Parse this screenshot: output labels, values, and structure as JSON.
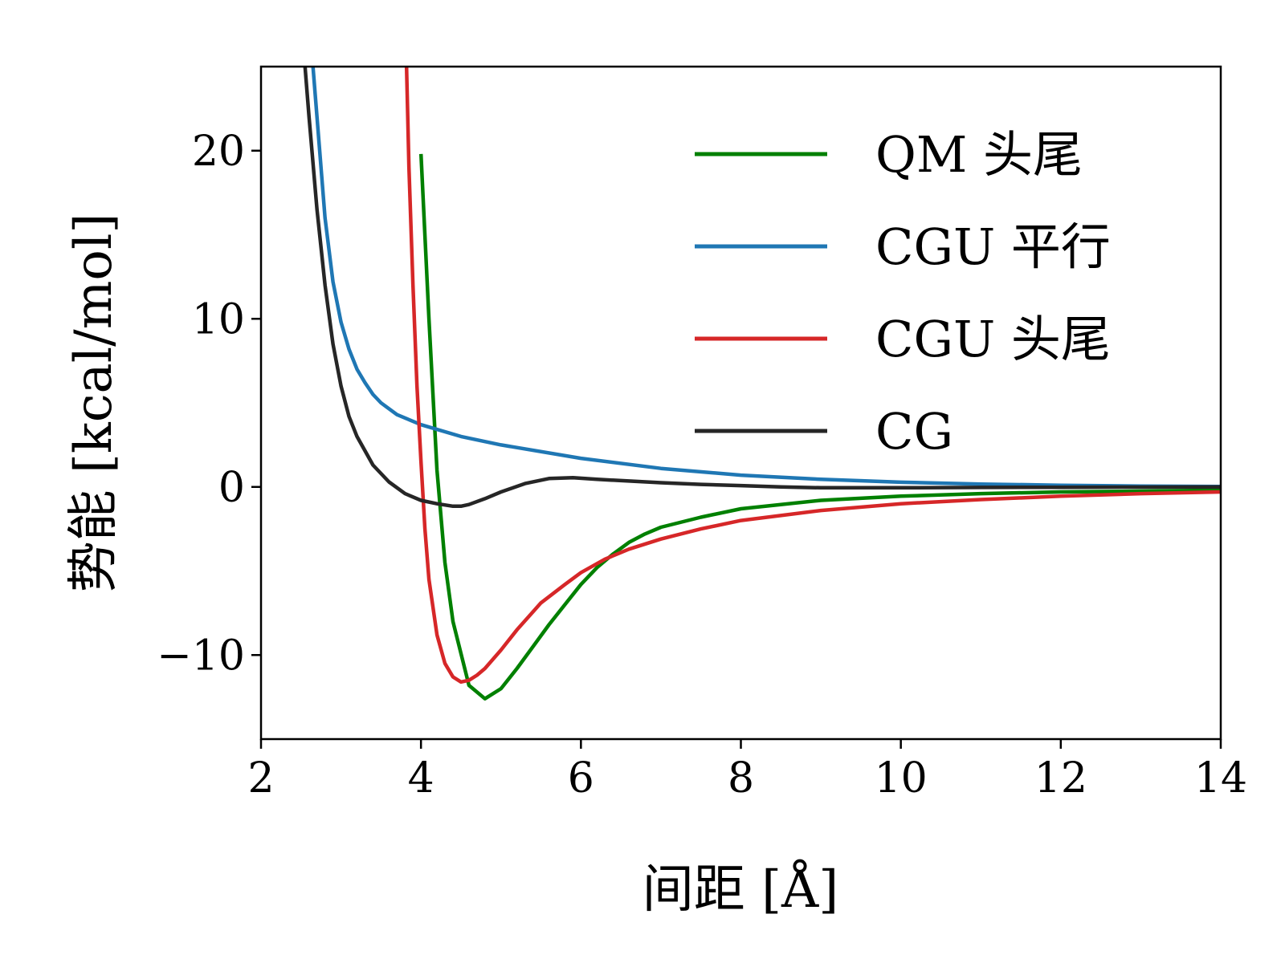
{
  "chart_data": {
    "type": "line",
    "xlabel": "间距 [Å]",
    "ylabel": "势能 [kcal/mol]",
    "xlim": [
      2,
      14
    ],
    "ylim": [
      -15,
      25
    ],
    "xticks": [
      2,
      4,
      6,
      8,
      10,
      12,
      14
    ],
    "yticks": [
      -10,
      0,
      10,
      20
    ],
    "xtick_labels": [
      "2",
      "4",
      "6",
      "8",
      "10",
      "12",
      "14"
    ],
    "ytick_labels": [
      "−10",
      "0",
      "10",
      "20"
    ],
    "grid": false,
    "legend_position": "top-right",
    "series": [
      {
        "name": "QM 头尾",
        "color": "#008000",
        "x": [
          4.0,
          4.1,
          4.2,
          4.3,
          4.4,
          4.6,
          4.8,
          5.0,
          5.2,
          5.4,
          5.6,
          5.8,
          6.0,
          6.2,
          6.4,
          6.6,
          6.8,
          7.0,
          7.5,
          8.0,
          9.0,
          10.0,
          11.0,
          12.0,
          13.0,
          14.0
        ],
        "y": [
          19.8,
          10.0,
          1.0,
          -4.5,
          -8.0,
          -11.8,
          -12.6,
          -12.0,
          -10.8,
          -9.5,
          -8.2,
          -7.0,
          -5.8,
          -4.8,
          -4.0,
          -3.3,
          -2.8,
          -2.4,
          -1.8,
          -1.3,
          -0.8,
          -0.55,
          -0.4,
          -0.3,
          -0.25,
          -0.2
        ]
      },
      {
        "name": "CGU 平行",
        "color": "#1f77b4",
        "x": [
          2.65,
          2.7,
          2.8,
          2.9,
          3.0,
          3.1,
          3.2,
          3.3,
          3.4,
          3.5,
          3.7,
          4.0,
          4.5,
          5.0,
          6.0,
          7.0,
          8.0,
          9.0,
          10.0,
          11.0,
          12.0,
          13.0,
          14.0
        ],
        "y": [
          25.0,
          22.0,
          16.0,
          12.2,
          9.8,
          8.2,
          7.0,
          6.2,
          5.5,
          5.0,
          4.3,
          3.7,
          3.0,
          2.5,
          1.7,
          1.1,
          0.7,
          0.45,
          0.28,
          0.17,
          0.1,
          0.05,
          0.02
        ]
      },
      {
        "name": "CGU 头尾",
        "color": "#d62728",
        "x": [
          3.82,
          3.85,
          3.9,
          3.95,
          4.0,
          4.05,
          4.1,
          4.2,
          4.3,
          4.4,
          4.5,
          4.6,
          4.7,
          4.8,
          5.0,
          5.2,
          5.5,
          5.8,
          6.0,
          6.3,
          6.6,
          7.0,
          7.5,
          8.0,
          9.0,
          10.0,
          11.0,
          12.0,
          13.0,
          14.0
        ],
        "y": [
          25.0,
          19.0,
          12.0,
          6.0,
          1.5,
          -2.5,
          -5.5,
          -8.8,
          -10.5,
          -11.3,
          -11.6,
          -11.5,
          -11.2,
          -10.8,
          -9.7,
          -8.5,
          -6.9,
          -5.8,
          -5.1,
          -4.3,
          -3.7,
          -3.1,
          -2.5,
          -2.0,
          -1.4,
          -1.0,
          -0.75,
          -0.55,
          -0.4,
          -0.3
        ]
      },
      {
        "name": "CG",
        "color": "#262626",
        "x": [
          2.55,
          2.6,
          2.7,
          2.8,
          2.9,
          3.0,
          3.1,
          3.2,
          3.4,
          3.6,
          3.8,
          4.0,
          4.2,
          4.4,
          4.5,
          4.6,
          4.8,
          5.0,
          5.3,
          5.6,
          5.9,
          6.2,
          6.6,
          7.0,
          7.5,
          8.0,
          8.5,
          9.0,
          10.0,
          11.0,
          12.0,
          13.0,
          14.0
        ],
        "y": [
          25.0,
          22.0,
          16.5,
          12.0,
          8.5,
          6.0,
          4.2,
          3.0,
          1.3,
          0.3,
          -0.4,
          -0.8,
          -1.0,
          -1.15,
          -1.15,
          -1.05,
          -0.7,
          -0.3,
          0.2,
          0.5,
          0.55,
          0.45,
          0.35,
          0.25,
          0.15,
          0.08,
          0.0,
          -0.05,
          -0.05,
          -0.03,
          -0.02,
          -0.01,
          0.0
        ]
      }
    ]
  }
}
